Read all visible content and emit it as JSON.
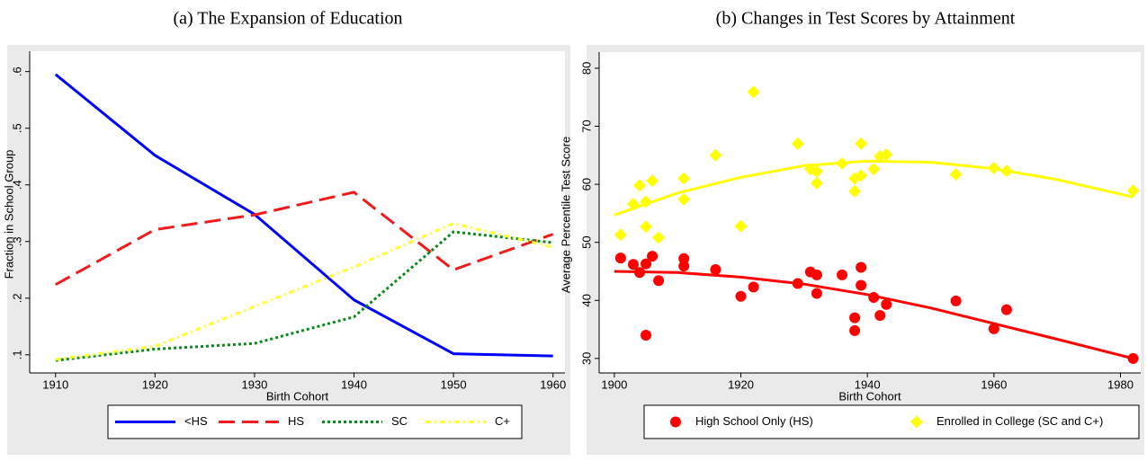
{
  "chart_data": [
    {
      "type": "line",
      "title": "(a) The Expansion of Education",
      "xlabel": "Birth Cohort",
      "ylabel": "Fraction in School Group",
      "x": [
        1910,
        1920,
        1930,
        1940,
        1950,
        1960
      ],
      "series": [
        {
          "name": "<HS",
          "color": "#0000ff",
          "style": "solid",
          "values": [
            0.595,
            0.452,
            0.348,
            0.197,
            0.102,
            0.098
          ]
        },
        {
          "name": "HS",
          "color": "#ee1c1c",
          "style": "dash",
          "values": [
            0.224,
            0.321,
            0.347,
            0.387,
            0.25,
            0.313
          ]
        },
        {
          "name": "SC",
          "color": "#0a8a1a",
          "style": "dot",
          "values": [
            0.09,
            0.11,
            0.12,
            0.167,
            0.317,
            0.298
          ]
        },
        {
          "name": "C+",
          "color": "#ffff33",
          "style": "dashdot",
          "values": [
            0.092,
            0.115,
            0.185,
            0.255,
            0.332,
            0.29
          ]
        }
      ],
      "xlim": [
        1907.4,
        1961.2
      ],
      "ylim": [
        0.068,
        0.628
      ],
      "xticks": [
        1910,
        1920,
        1930,
        1940,
        1950,
        1960
      ],
      "yticks": [
        {
          "value": 0.1,
          "label": ".1"
        },
        {
          "value": 0.2,
          "label": ".2"
        },
        {
          "value": 0.3,
          "label": ".3"
        },
        {
          "value": 0.4,
          "label": ".4"
        },
        {
          "value": 0.5,
          "label": ".5"
        },
        {
          "value": 0.6,
          "label": ".6"
        }
      ]
    },
    {
      "type": "scatter",
      "title": "(b) Changes in Test Scores by Attainment",
      "xlabel": "Birth Cohort",
      "ylabel": "Average Percentile Test Score",
      "series": [
        {
          "name": "High School Only (HS)",
          "color": "#ff0000",
          "marker": "circle",
          "x": [
            1901,
            1903,
            1904,
            1905,
            1906,
            1905,
            1907,
            1911,
            1911,
            1916,
            1920,
            1922,
            1929,
            1931,
            1932,
            1932,
            1936,
            1938,
            1938,
            1939,
            1939,
            1941,
            1942,
            1943,
            1954,
            1960,
            1962,
            1982
          ],
          "values": [
            47.3,
            46.2,
            44.8,
            46.3,
            47.6,
            34,
            43.4,
            47.2,
            45.9,
            45.3,
            40.7,
            42.3,
            42.9,
            44.9,
            44.4,
            41.2,
            44.4,
            37,
            34.8,
            45.7,
            42.6,
            40.5,
            37.4,
            39.3,
            39.9,
            35.1,
            38.4,
            30
          ]
        },
        {
          "name": "Enrolled in College (SC and C+)",
          "color": "#ffff00",
          "marker": "diamond",
          "x": [
            1901,
            1903,
            1904,
            1905,
            1905,
            1906,
            1907,
            1911,
            1911,
            1916,
            1920,
            1922,
            1929,
            1931,
            1932,
            1932,
            1936,
            1938,
            1938,
            1939,
            1939,
            1941,
            1942,
            1943,
            1954,
            1960,
            1962,
            1982
          ],
          "values": [
            51.3,
            56.6,
            59.8,
            57,
            52.7,
            60.6,
            50.8,
            61,
            57.4,
            65,
            52.8,
            75.9,
            67,
            62.6,
            62.2,
            60.2,
            63.6,
            61,
            58.8,
            67,
            61.5,
            62.6,
            64.8,
            65.1,
            61.7,
            62.8,
            62.3,
            58.9
          ]
        }
      ],
      "fits": [
        {
          "color": "#ff0000",
          "x": [
            1900,
            1910,
            1920,
            1930,
            1940,
            1950,
            1960,
            1970,
            1982
          ],
          "values": [
            45,
            44.8,
            44,
            42.8,
            41,
            38.7,
            36,
            33.3,
            30
          ]
        },
        {
          "color": "#ffff00",
          "x": [
            1900,
            1910,
            1920,
            1930,
            1940,
            1950,
            1960,
            1970,
            1982
          ],
          "values": [
            54.7,
            58.5,
            61.2,
            63.2,
            64,
            63.8,
            62.7,
            60.8,
            57.8
          ]
        }
      ],
      "xlim": [
        1897.6,
        1983.2
      ],
      "ylim": [
        27.5,
        82
      ],
      "xticks": [
        1900,
        1920,
        1940,
        1960,
        1980
      ],
      "yticks": [
        30,
        40,
        50,
        60,
        70,
        80
      ]
    }
  ]
}
